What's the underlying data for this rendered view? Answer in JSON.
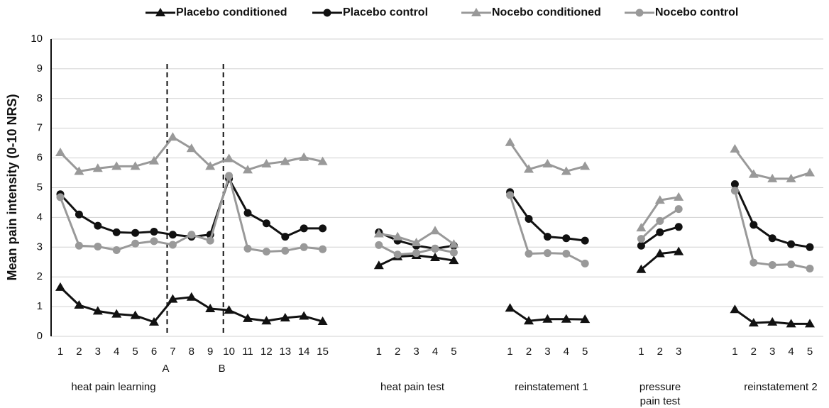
{
  "chart_data": {
    "type": "line",
    "y_label": "Mean pain intensity (0-10 NRS)",
    "categories": [
      "1",
      "2",
      "3",
      "4",
      "5",
      "6",
      "7",
      "8",
      "9",
      "10",
      "11",
      "12",
      "13",
      "14",
      "15",
      null,
      null,
      "1",
      "2",
      "3",
      "4",
      "5",
      null,
      null,
      "1",
      "2",
      "3",
      "4",
      "5",
      null,
      null,
      "1",
      "2",
      "3",
      null,
      null,
      "1",
      "2",
      "3",
      "4",
      "5"
    ],
    "group_labels": [
      [
        "heat pain learning"
      ],
      [
        "heat pain test"
      ],
      [
        "reinstatement 1"
      ],
      [
        "pressure",
        "pain test"
      ],
      [
        "reinstatement 2"
      ]
    ],
    "annotations": [
      "A",
      "B"
    ],
    "ylim": [
      0,
      10
    ],
    "yticks": [
      0,
      1,
      2,
      3,
      4,
      5,
      6,
      7,
      8,
      9,
      10
    ],
    "grid": true,
    "legend": "top",
    "series": [
      {
        "name": "Placebo conditioned",
        "color": "#111111",
        "marker": "triangle",
        "values": [
          1.65,
          1.05,
          0.85,
          0.75,
          0.7,
          0.48,
          1.25,
          1.32,
          0.93,
          0.88,
          0.6,
          0.52,
          0.62,
          0.68,
          0.5,
          null,
          null,
          2.38,
          2.68,
          2.72,
          2.65,
          2.55,
          null,
          null,
          0.95,
          0.52,
          0.58,
          0.58,
          0.57,
          null,
          null,
          2.25,
          2.78,
          2.85,
          null,
          null,
          0.9,
          0.45,
          0.48,
          0.42,
          0.42
        ]
      },
      {
        "name": "Placebo control",
        "color": "#111111",
        "marker": "circle",
        "values": [
          4.78,
          4.1,
          3.72,
          3.5,
          3.48,
          3.52,
          3.42,
          3.35,
          3.42,
          5.3,
          4.15,
          3.8,
          3.35,
          3.63,
          3.63,
          null,
          null,
          3.5,
          3.22,
          3.05,
          2.95,
          3.05,
          null,
          null,
          4.85,
          3.95,
          3.35,
          3.3,
          3.22,
          null,
          null,
          3.05,
          3.5,
          3.68,
          null,
          null,
          5.12,
          3.75,
          3.3,
          3.1,
          3.0
        ]
      },
      {
        "name": "Nocebo conditioned",
        "color": "#999999",
        "marker": "triangle",
        "values": [
          6.18,
          5.55,
          5.65,
          5.72,
          5.72,
          5.9,
          6.7,
          6.32,
          5.72,
          5.98,
          5.6,
          5.8,
          5.88,
          6.02,
          5.88,
          null,
          null,
          3.45,
          3.35,
          3.15,
          3.55,
          3.1,
          null,
          null,
          6.52,
          5.62,
          5.8,
          5.55,
          5.72,
          null,
          null,
          3.65,
          4.58,
          4.68,
          null,
          null,
          6.3,
          5.45,
          5.3,
          5.3,
          5.5
        ]
      },
      {
        "name": "Nocebo control",
        "color": "#999999",
        "marker": "circle",
        "values": [
          4.68,
          3.05,
          3.02,
          2.9,
          3.12,
          3.2,
          3.08,
          3.42,
          3.22,
          5.4,
          2.95,
          2.85,
          2.88,
          3.0,
          2.93,
          null,
          null,
          3.07,
          2.75,
          2.8,
          2.95,
          2.82,
          null,
          null,
          4.75,
          2.78,
          2.8,
          2.78,
          2.45,
          null,
          null,
          3.28,
          3.88,
          4.28,
          null,
          null,
          4.9,
          2.48,
          2.4,
          2.42,
          2.28
        ]
      }
    ]
  }
}
